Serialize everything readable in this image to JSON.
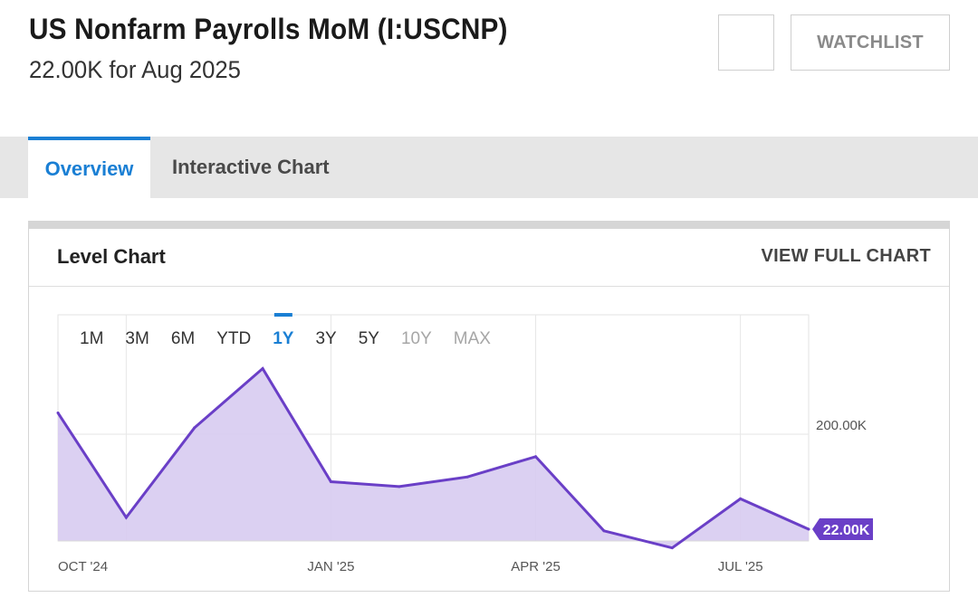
{
  "header": {
    "title": "US Nonfarm Payrolls MoM (I:USCNP)",
    "subtitle": "22.00K for Aug 2025",
    "watchlist_label": "WATCHLIST"
  },
  "tabs": [
    {
      "label": "Overview",
      "active": true
    },
    {
      "label": "Interactive Chart",
      "active": false
    }
  ],
  "panel": {
    "title": "Level Chart",
    "link_label": "VIEW FULL CHART"
  },
  "ranges": [
    {
      "label": "1M",
      "state": "normal"
    },
    {
      "label": "3M",
      "state": "normal"
    },
    {
      "label": "6M",
      "state": "normal"
    },
    {
      "label": "YTD",
      "state": "normal"
    },
    {
      "label": "1Y",
      "state": "active"
    },
    {
      "label": "3Y",
      "state": "normal"
    },
    {
      "label": "5Y",
      "state": "normal"
    },
    {
      "label": "10Y",
      "state": "disabled"
    },
    {
      "label": "MAX",
      "state": "disabled"
    }
  ],
  "colors": {
    "accent": "#1a7fd4",
    "series_line": "#6a3fc7",
    "series_fill": "#d7cbf1",
    "badge_bg": "#6a3fc7"
  },
  "chart_data": {
    "type": "area",
    "x": [
      "2024-09",
      "2024-10",
      "2024-11",
      "2024-12",
      "2025-01",
      "2025-02",
      "2025-03",
      "2025-04",
      "2025-05",
      "2025-06",
      "2025-07",
      "2025-08"
    ],
    "series": [
      {
        "values": [
          240,
          44,
          212,
          323,
          111,
          102,
          120,
          158,
          19,
          -13,
          79,
          22
        ]
      }
    ],
    "x_ticks": [
      "OCT '24",
      "JAN '25",
      "APR '25",
      "JUL '25"
    ],
    "y_ticks": [
      {
        "value": 200,
        "label": "200.00K"
      }
    ],
    "ylim": [
      0,
      340
    ],
    "last_value_label": "22.00K",
    "grid": true
  }
}
